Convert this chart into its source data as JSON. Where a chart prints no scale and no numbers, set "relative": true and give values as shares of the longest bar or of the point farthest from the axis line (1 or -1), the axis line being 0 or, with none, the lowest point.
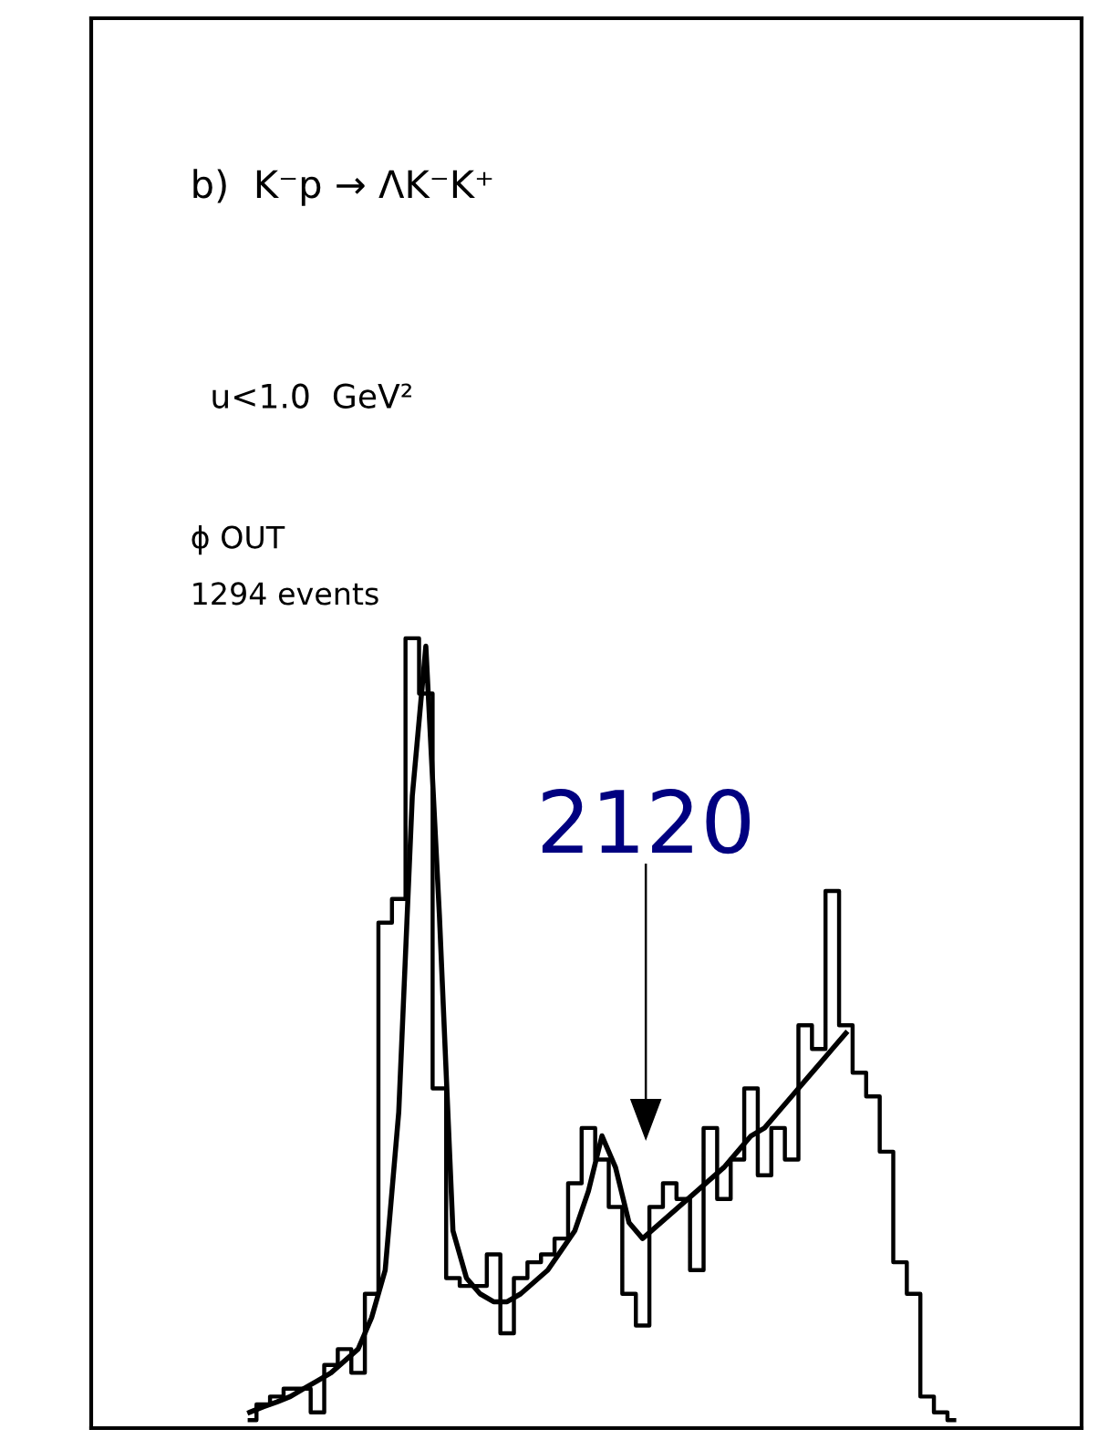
{
  "chart_data": {
    "type": "step",
    "relative": true,
    "categories": [
      null,
      null,
      null,
      null,
      null,
      null,
      null,
      null,
      null,
      null,
      null,
      null,
      null,
      null,
      null,
      null,
      null,
      null,
      null,
      null,
      null,
      null,
      null,
      null,
      null,
      null,
      null,
      null,
      null,
      null,
      null,
      null,
      null,
      null,
      null,
      null,
      null,
      null,
      null,
      null,
      null,
      null,
      null,
      null,
      null,
      null,
      null,
      null,
      null,
      null,
      null,
      null,
      null
    ],
    "series": [
      {
        "color": "#000000",
        "values": [
          0.01,
          0.03,
          0.04,
          0.05,
          0.05,
          0.02,
          0.08,
          0.1,
          0.07,
          0.17,
          0.64,
          0.67,
          1,
          0.93,
          0.43,
          0.19,
          0.18,
          0.18,
          0.22,
          0.12,
          0.19,
          0.21,
          0.22,
          0.24,
          0.31,
          0.38,
          0.34,
          0.28,
          0.17,
          0.13,
          0.28,
          0.31,
          0.29,
          0.2,
          0.38,
          0.29,
          0.34,
          0.43,
          0.32,
          0.38,
          0.34,
          0.51,
          0.48,
          0.68,
          0.51,
          0.45,
          0.42,
          0.35,
          0.21,
          0.17,
          0.04,
          0.02,
          0.01
        ]
      },
      {
        "type": "line",
        "color": "#000000",
        "values": [
          0.02,
          0.027,
          0.033,
          0.04,
          0.05,
          0.06,
          0.07,
          0.085,
          0.1,
          0.14,
          0.2,
          0.4,
          0.8,
          0.99,
          0.65,
          0.25,
          0.19,
          0.17,
          0.16,
          0.16,
          0.17,
          0.185,
          0.2,
          0.225,
          0.25,
          0.3,
          0.37,
          0.33,
          0.26,
          0.24,
          0.255,
          0.27,
          0.285,
          0.3,
          0.315,
          0.33,
          0.35,
          0.37,
          0.38,
          0.4,
          0.42,
          0.44,
          0.46,
          0.48,
          0.5,
          null,
          null,
          null,
          null,
          null,
          null,
          null,
          null
        ]
      }
    ],
    "annotations": [
      "b)  K⁻p → ΛK⁻K⁺",
      "u<1.0  GeV²",
      "ϕ OUT",
      "1294 events",
      "2120"
    ]
  }
}
